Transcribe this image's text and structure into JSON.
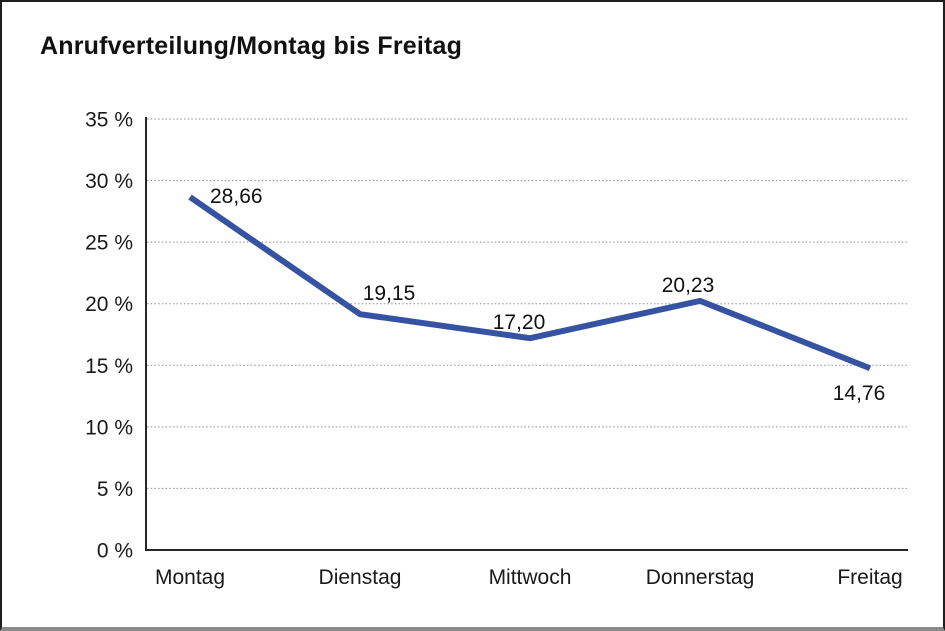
{
  "title": "Anrufverteilung/Montag bis Freitag",
  "chart_data": {
    "type": "line",
    "title": "Anrufverteilung/Montag bis Freitag",
    "categories": [
      "Montag",
      "Dienstag",
      "Mittwoch",
      "Donnerstag",
      "Freitag"
    ],
    "series": [
      {
        "name": "Anrufverteilung",
        "values": [
          28.66,
          19.15,
          17.2,
          20.23,
          14.76
        ]
      }
    ],
    "data_labels": [
      "28,66",
      "19,15",
      "17,20",
      "20,23",
      "14,76"
    ],
    "y_ticks": [
      {
        "value": 35,
        "label": "35 %"
      },
      {
        "value": 30,
        "label": "30 %"
      },
      {
        "value": 25,
        "label": "25 %"
      },
      {
        "value": 20,
        "label": "20 %"
      },
      {
        "value": 15,
        "label": "15 %"
      },
      {
        "value": 10,
        "label": "10 %"
      },
      {
        "value": 5,
        "label": "5 %"
      },
      {
        "value": 0,
        "label": "0 %"
      }
    ],
    "ylim": [
      0,
      35
    ],
    "xlabel": "",
    "ylabel": "",
    "grid": "horizontal-dotted",
    "legend": "none",
    "colors": {
      "line": "#3653A3",
      "grid": "#8e8e8e",
      "axis": "#262626",
      "text": "#1a1a1a",
      "background": "#ffffff"
    }
  }
}
